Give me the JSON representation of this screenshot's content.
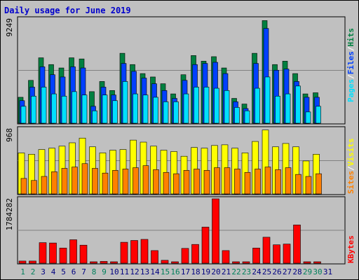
{
  "title": "Daily usage for June 2019",
  "colors": {
    "background": "#c0c0c0",
    "panel": "#c0c0c0",
    "hits": "#008040",
    "files": "#0040ff",
    "pages": "#00e0ff",
    "visits": "#ffff00",
    "sites": "#ff8000",
    "kbytes": "#ff0000",
    "weekend_label": "#00805c",
    "weekday_label": "#000080",
    "sep": "#ffffff"
  },
  "right_labels": {
    "pages": "Pages",
    "files": "Files",
    "hits": "Hits",
    "sep": "/",
    "visits": "Visits",
    "sites": "Sites",
    "kbytes": "KBytes"
  },
  "chart_data": [
    {
      "type": "bar",
      "panel": "hits-files-pages",
      "ymax_label": "9249",
      "ylim": [
        0,
        9249
      ],
      "x": [
        1,
        2,
        3,
        4,
        5,
        6,
        7,
        8,
        9,
        10,
        11,
        12,
        13,
        14,
        15,
        16,
        17,
        18,
        19,
        20,
        21,
        22,
        23,
        24,
        25,
        26,
        27,
        28,
        29,
        30,
        31
      ],
      "weekend_days": [
        1,
        2,
        8,
        9,
        15,
        16,
        22,
        23,
        29,
        30
      ],
      "series": [
        {
          "name": "Hits",
          "key": "hits",
          "values": [
            2300,
            3800,
            5800,
            5200,
            4900,
            5800,
            5700,
            2800,
            3700,
            2900,
            6200,
            5200,
            4400,
            4100,
            3500,
            2600,
            4300,
            6000,
            5500,
            5900,
            4900,
            2200,
            1700,
            6200,
            9100,
            5200,
            5500,
            4400,
            2600,
            2700,
            0
          ]
        },
        {
          "name": "Files",
          "key": "files",
          "values": [
            2000,
            3200,
            5000,
            4300,
            4100,
            5000,
            4900,
            1500,
            3200,
            2500,
            5300,
            4600,
            4000,
            3500,
            2900,
            2200,
            3800,
            5200,
            5300,
            5400,
            4400,
            1900,
            1300,
            5300,
            8400,
            4700,
            4800,
            3700,
            2300,
            2300,
            0
          ]
        },
        {
          "name": "Pages",
          "key": "pages",
          "values": [
            1500,
            2400,
            3200,
            2600,
            2400,
            2800,
            2500,
            1100,
            2500,
            2000,
            3700,
            2600,
            2500,
            2300,
            1900,
            1900,
            2600,
            3200,
            3200,
            3100,
            2900,
            1400,
            1100,
            3100,
            4100,
            2400,
            2600,
            3300,
            1000,
            1500,
            0
          ]
        }
      ]
    },
    {
      "type": "bar",
      "panel": "visits-sites",
      "ymax_label": "968",
      "ylim": [
        0,
        968
      ],
      "series": [
        {
          "name": "Visits",
          "key": "visits",
          "values": [
            609,
            590,
            660,
            680,
            710,
            760,
            830,
            700,
            610,
            650,
            660,
            800,
            770,
            710,
            650,
            630,
            560,
            690,
            680,
            720,
            730,
            680,
            610,
            780,
            950,
            700,
            750,
            700,
            490,
            590,
            0
          ]
        },
        {
          "name": "Sites",
          "key": "sites",
          "values": [
            230,
            200,
            260,
            330,
            380,
            400,
            450,
            380,
            310,
            350,
            370,
            390,
            420,
            360,
            320,
            300,
            350,
            370,
            350,
            390,
            390,
            370,
            320,
            370,
            400,
            360,
            390,
            290,
            260,
            300,
            0
          ]
        }
      ]
    },
    {
      "type": "bar",
      "panel": "kbytes",
      "ymax_label": "1784282",
      "ylim": [
        0,
        1784282
      ],
      "series": [
        {
          "name": "KBytes",
          "key": "kbytes",
          "values": [
            60000,
            60000,
            570000,
            560000,
            420000,
            650000,
            500000,
            40000,
            50000,
            40000,
            580000,
            630000,
            660000,
            350000,
            80000,
            40000,
            410000,
            520000,
            1000000,
            1784282,
            350000,
            40000,
            40000,
            420000,
            720000,
            510000,
            530000,
            1060000,
            40000,
            40000,
            0
          ]
        }
      ]
    }
  ]
}
